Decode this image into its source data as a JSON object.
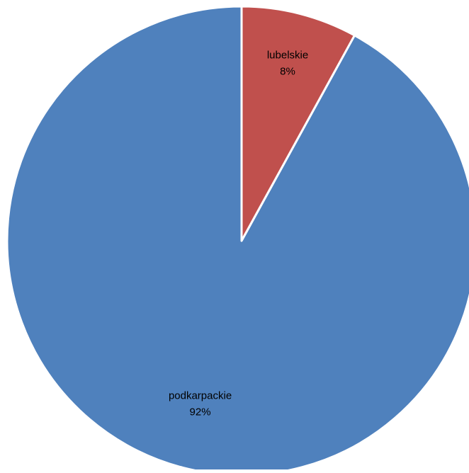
{
  "chart_data": {
    "type": "pie",
    "title": "",
    "start_angle_deg": 0,
    "direction": "counterclockwise",
    "legend": "none",
    "slices": [
      {
        "label": "podkarpackie",
        "value": 92,
        "display": "92%",
        "color": "#4F81BD"
      },
      {
        "label": "lubelskie",
        "value": 8,
        "display": "8%",
        "color": "#C0504D"
      }
    ]
  }
}
